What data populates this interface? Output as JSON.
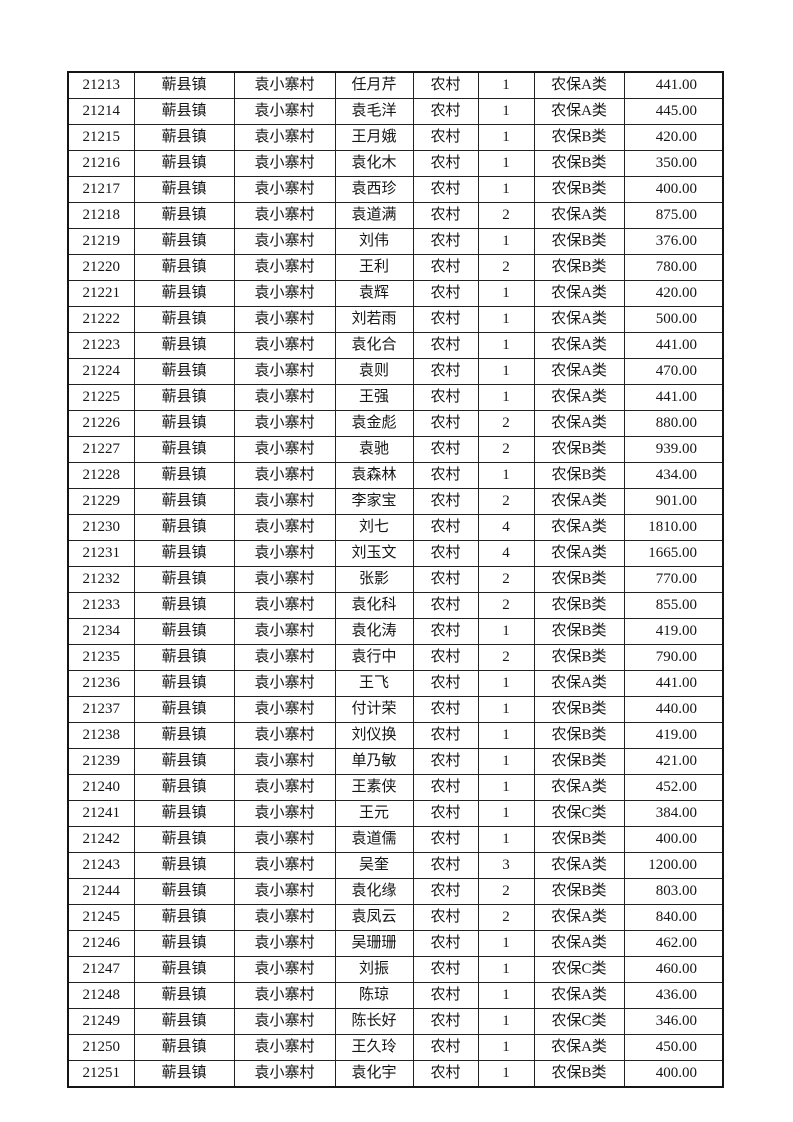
{
  "colors": {
    "page_background": "#ffffff",
    "table_border": "#1a1a1a",
    "text": "#151515"
  },
  "table": {
    "rows": [
      [
        "21213",
        "蕲县镇",
        "袁小寨村",
        "任月芹",
        "农村",
        "1",
        "农保A类",
        "441.00"
      ],
      [
        "21214",
        "蕲县镇",
        "袁小寨村",
        "袁毛洋",
        "农村",
        "1",
        "农保A类",
        "445.00"
      ],
      [
        "21215",
        "蕲县镇",
        "袁小寨村",
        "王月娥",
        "农村",
        "1",
        "农保B类",
        "420.00"
      ],
      [
        "21216",
        "蕲县镇",
        "袁小寨村",
        "袁化木",
        "农村",
        "1",
        "农保B类",
        "350.00"
      ],
      [
        "21217",
        "蕲县镇",
        "袁小寨村",
        "袁西珍",
        "农村",
        "1",
        "农保B类",
        "400.00"
      ],
      [
        "21218",
        "蕲县镇",
        "袁小寨村",
        "袁道满",
        "农村",
        "2",
        "农保A类",
        "875.00"
      ],
      [
        "21219",
        "蕲县镇",
        "袁小寨村",
        "刘伟",
        "农村",
        "1",
        "农保B类",
        "376.00"
      ],
      [
        "21220",
        "蕲县镇",
        "袁小寨村",
        "王利",
        "农村",
        "2",
        "农保B类",
        "780.00"
      ],
      [
        "21221",
        "蕲县镇",
        "袁小寨村",
        "袁辉",
        "农村",
        "1",
        "农保A类",
        "420.00"
      ],
      [
        "21222",
        "蕲县镇",
        "袁小寨村",
        "刘若雨",
        "农村",
        "1",
        "农保A类",
        "500.00"
      ],
      [
        "21223",
        "蕲县镇",
        "袁小寨村",
        "袁化合",
        "农村",
        "1",
        "农保A类",
        "441.00"
      ],
      [
        "21224",
        "蕲县镇",
        "袁小寨村",
        "袁则",
        "农村",
        "1",
        "农保A类",
        "470.00"
      ],
      [
        "21225",
        "蕲县镇",
        "袁小寨村",
        "王强",
        "农村",
        "1",
        "农保A类",
        "441.00"
      ],
      [
        "21226",
        "蕲县镇",
        "袁小寨村",
        "袁金彪",
        "农村",
        "2",
        "农保A类",
        "880.00"
      ],
      [
        "21227",
        "蕲县镇",
        "袁小寨村",
        "袁驰",
        "农村",
        "2",
        "农保B类",
        "939.00"
      ],
      [
        "21228",
        "蕲县镇",
        "袁小寨村",
        "袁森林",
        "农村",
        "1",
        "农保B类",
        "434.00"
      ],
      [
        "21229",
        "蕲县镇",
        "袁小寨村",
        "李家宝",
        "农村",
        "2",
        "农保A类",
        "901.00"
      ],
      [
        "21230",
        "蕲县镇",
        "袁小寨村",
        "刘七",
        "农村",
        "4",
        "农保A类",
        "1810.00"
      ],
      [
        "21231",
        "蕲县镇",
        "袁小寨村",
        "刘玉文",
        "农村",
        "4",
        "农保A类",
        "1665.00"
      ],
      [
        "21232",
        "蕲县镇",
        "袁小寨村",
        "张影",
        "农村",
        "2",
        "农保B类",
        "770.00"
      ],
      [
        "21233",
        "蕲县镇",
        "袁小寨村",
        "袁化科",
        "农村",
        "2",
        "农保B类",
        "855.00"
      ],
      [
        "21234",
        "蕲县镇",
        "袁小寨村",
        "袁化涛",
        "农村",
        "1",
        "农保B类",
        "419.00"
      ],
      [
        "21235",
        "蕲县镇",
        "袁小寨村",
        "袁行中",
        "农村",
        "2",
        "农保B类",
        "790.00"
      ],
      [
        "21236",
        "蕲县镇",
        "袁小寨村",
        "王飞",
        "农村",
        "1",
        "农保A类",
        "441.00"
      ],
      [
        "21237",
        "蕲县镇",
        "袁小寨村",
        "付计荣",
        "农村",
        "1",
        "农保B类",
        "440.00"
      ],
      [
        "21238",
        "蕲县镇",
        "袁小寨村",
        "刘仪换",
        "农村",
        "1",
        "农保B类",
        "419.00"
      ],
      [
        "21239",
        "蕲县镇",
        "袁小寨村",
        "单乃敏",
        "农村",
        "1",
        "农保B类",
        "421.00"
      ],
      [
        "21240",
        "蕲县镇",
        "袁小寨村",
        "王素侠",
        "农村",
        "1",
        "农保A类",
        "452.00"
      ],
      [
        "21241",
        "蕲县镇",
        "袁小寨村",
        "王元",
        "农村",
        "1",
        "农保C类",
        "384.00"
      ],
      [
        "21242",
        "蕲县镇",
        "袁小寨村",
        "袁道儒",
        "农村",
        "1",
        "农保B类",
        "400.00"
      ],
      [
        "21243",
        "蕲县镇",
        "袁小寨村",
        "吴奎",
        "农村",
        "3",
        "农保A类",
        "1200.00"
      ],
      [
        "21244",
        "蕲县镇",
        "袁小寨村",
        "袁化缘",
        "农村",
        "2",
        "农保B类",
        "803.00"
      ],
      [
        "21245",
        "蕲县镇",
        "袁小寨村",
        "袁凤云",
        "农村",
        "2",
        "农保A类",
        "840.00"
      ],
      [
        "21246",
        "蕲县镇",
        "袁小寨村",
        "吴珊珊",
        "农村",
        "1",
        "农保A类",
        "462.00"
      ],
      [
        "21247",
        "蕲县镇",
        "袁小寨村",
        "刘振",
        "农村",
        "1",
        "农保C类",
        "460.00"
      ],
      [
        "21248",
        "蕲县镇",
        "袁小寨村",
        "陈琼",
        "农村",
        "1",
        "农保A类",
        "436.00"
      ],
      [
        "21249",
        "蕲县镇",
        "袁小寨村",
        "陈长好",
        "农村",
        "1",
        "农保C类",
        "346.00"
      ],
      [
        "21250",
        "蕲县镇",
        "袁小寨村",
        "王久玲",
        "农村",
        "1",
        "农保A类",
        "450.00"
      ],
      [
        "21251",
        "蕲县镇",
        "袁小寨村",
        "袁化宇",
        "农村",
        "1",
        "农保B类",
        "400.00"
      ]
    ]
  }
}
